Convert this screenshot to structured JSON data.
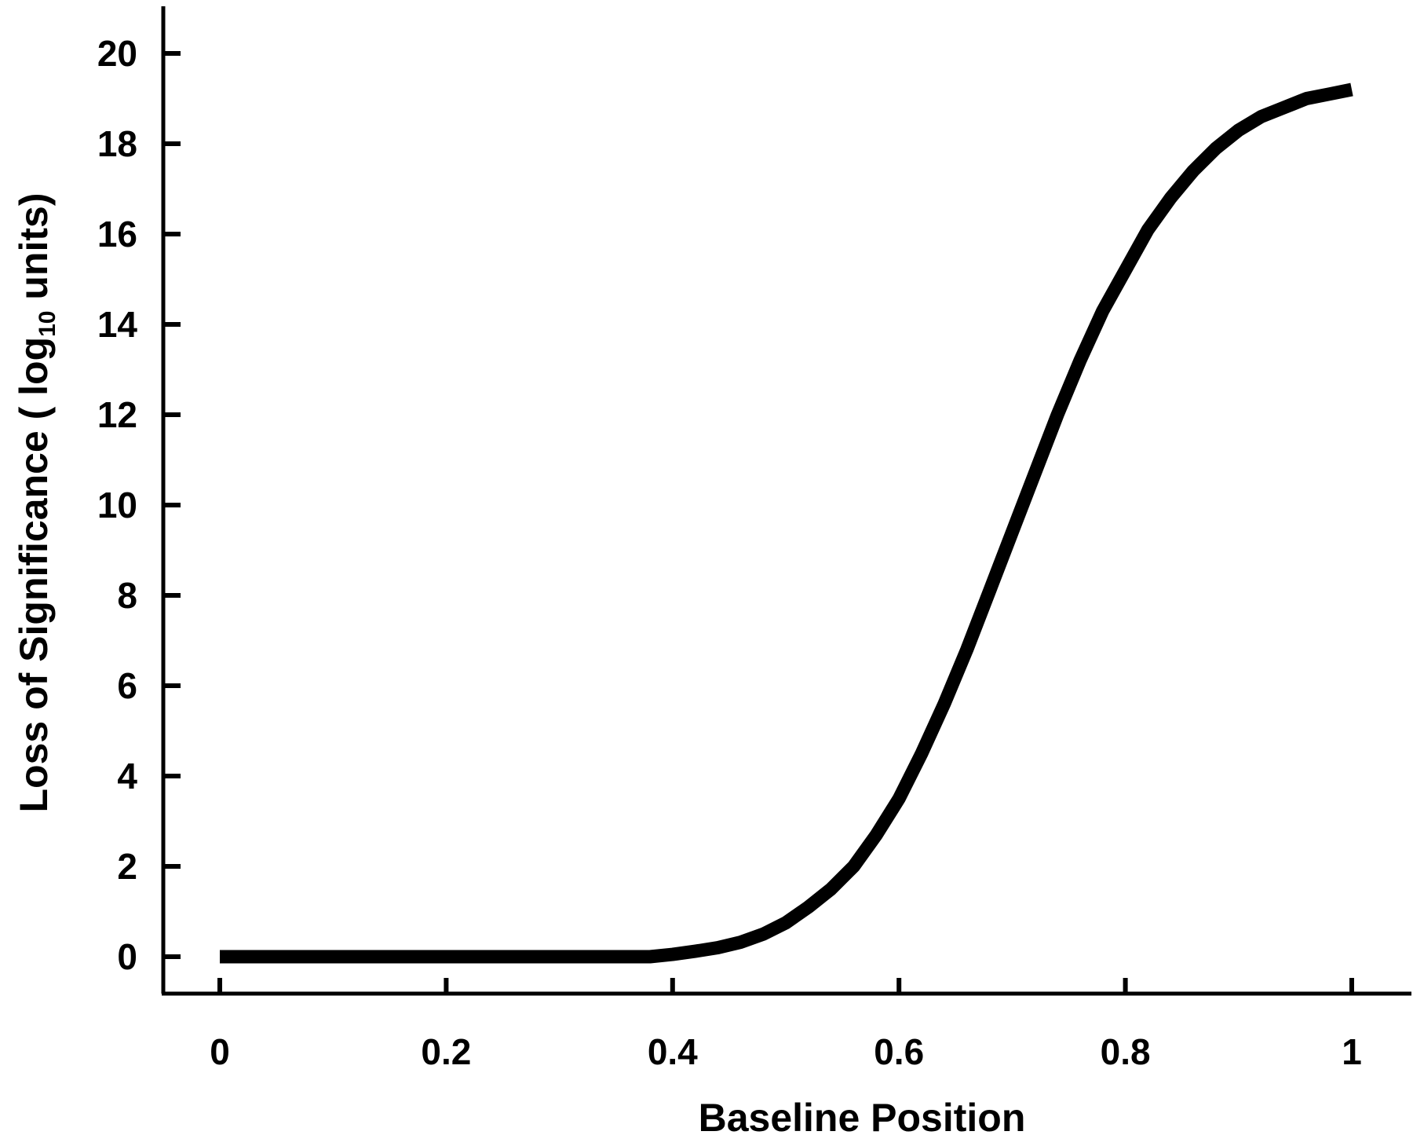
{
  "chart_data": {
    "type": "line",
    "title": "",
    "xlabel": "Baseline Position",
    "ylabel_main": "Loss of Significance ( log",
    "ylabel_subscript": "10",
    "ylabel_tail": " units)",
    "xlim": [
      0,
      1.05
    ],
    "ylim": [
      -0.7,
      21
    ],
    "xticks": [
      0,
      0.2,
      0.4,
      0.6,
      0.8,
      1
    ],
    "xtick_labels": [
      "0",
      "0.2",
      "0.4",
      "0.6",
      "0.8",
      "1"
    ],
    "yticks": [
      0,
      2,
      4,
      6,
      8,
      10,
      12,
      14,
      16,
      18,
      20
    ],
    "ytick_labels": [
      "0",
      "2",
      "4",
      "6",
      "8",
      "10",
      "12",
      "14",
      "16",
      "18",
      "20"
    ],
    "grid": false,
    "line_color": "#000000",
    "series": [
      {
        "x": [
          0,
          0.05,
          0.1,
          0.15,
          0.2,
          0.25,
          0.3,
          0.35,
          0.38,
          0.4,
          0.42,
          0.44,
          0.46,
          0.48,
          0.5,
          0.52,
          0.54,
          0.56,
          0.58,
          0.6,
          0.62,
          0.64,
          0.66,
          0.68,
          0.7,
          0.72,
          0.74,
          0.76,
          0.78,
          0.8,
          0.82,
          0.84,
          0.86,
          0.88,
          0.9,
          0.92,
          0.94,
          0.96,
          0.98,
          1.0
        ],
        "y": [
          0,
          0,
          0,
          0,
          0,
          0,
          0,
          0,
          0,
          0.05,
          0.12,
          0.2,
          0.32,
          0.5,
          0.75,
          1.1,
          1.5,
          2.0,
          2.7,
          3.5,
          4.5,
          5.6,
          6.8,
          8.1,
          9.4,
          10.7,
          12.0,
          13.2,
          14.3,
          15.2,
          16.1,
          16.8,
          17.4,
          17.9,
          18.3,
          18.6,
          18.8,
          19.0,
          19.1,
          19.2
        ]
      }
    ]
  }
}
